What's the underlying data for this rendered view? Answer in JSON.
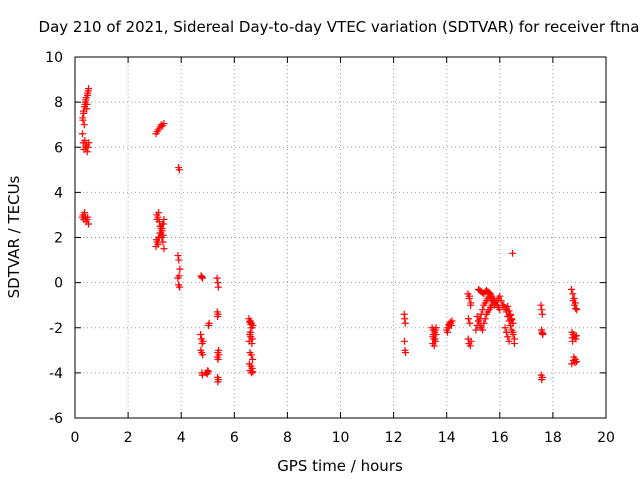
{
  "chart_data": {
    "type": "scatter",
    "title": "Day 210 of 2021, Sidereal Day-to-day VTEC variation (SDTVAR) for receiver ftna",
    "xlabel": "GPS time / hours",
    "ylabel": "SDTVAR / TECUs",
    "xlim": [
      0,
      20
    ],
    "ylim": [
      -6,
      10
    ],
    "x_ticks": [
      0,
      2,
      4,
      6,
      8,
      10,
      12,
      14,
      16,
      18,
      20
    ],
    "x_tick_labels": [
      "0",
      "2",
      "4",
      "6",
      "8",
      "10",
      "12",
      "14",
      "16",
      "18",
      "20"
    ],
    "y_ticks": [
      -6,
      -4,
      -2,
      0,
      2,
      4,
      6,
      8,
      10
    ],
    "y_tick_labels": [
      "-6",
      "-4",
      "-2",
      "0",
      "2",
      "4",
      "6",
      "8",
      "10"
    ],
    "grid": true,
    "marker": "+",
    "color": "#ff0000",
    "series": [
      {
        "name": "SDTVAR",
        "x": [
          0.28,
          0.31,
          0.34,
          0.37,
          0.4,
          0.43,
          0.46,
          0.49,
          0.52,
          0.3,
          0.33,
          0.36,
          0.39,
          0.42,
          0.45,
          0.48,
          0.51,
          0.29,
          0.32,
          0.35,
          0.38,
          0.41,
          0.44,
          0.47,
          0.5,
          0.27,
          0.3,
          0.33,
          0.36,
          0.39,
          0.42,
          0.45,
          0.48,
          0.51,
          3.05,
          3.1,
          3.15,
          3.2,
          3.25,
          3.3,
          3.35,
          3.05,
          3.1,
          3.15,
          3.2,
          3.25,
          3.3,
          3.35,
          3.08,
          3.12,
          3.18,
          3.22,
          3.28,
          3.32,
          3.07,
          3.13,
          3.17,
          3.23,
          3.27,
          3.33,
          3.09,
          3.15,
          3.21,
          3.27,
          3.31,
          3.35,
          3.9,
          3.93,
          3.88,
          3.91,
          3.95,
          3.87,
          3.92,
          3.9,
          3.94,
          4.75,
          4.78,
          4.8,
          4.73,
          4.76,
          4.79,
          4.82,
          4.74,
          4.77,
          4.81,
          4.78,
          4.8,
          4.95,
          5.0,
          5.05,
          5.03,
          4.98,
          5.02,
          5.35,
          5.38,
          5.4,
          5.36,
          5.39,
          5.37,
          5.41,
          5.38,
          5.42,
          5.36,
          5.39,
          5.37,
          5.4,
          5.38,
          6.55,
          6.6,
          6.65,
          6.7,
          6.58,
          6.62,
          6.68,
          6.56,
          6.61,
          6.66,
          6.59,
          6.64,
          6.69,
          6.57,
          6.63,
          6.67,
          6.6,
          6.65,
          6.7,
          6.58,
          6.62,
          6.66,
          12.4,
          12.42,
          12.44,
          12.41,
          12.43,
          12.45,
          13.45,
          13.5,
          13.55,
          13.6,
          13.48,
          13.52,
          13.58,
          13.47,
          13.53,
          13.57,
          13.49,
          13.55,
          13.6,
          14.0,
          14.05,
          14.1,
          14.15,
          14.2,
          14.03,
          14.08,
          14.13,
          14.18,
          14.8,
          14.85,
          14.9,
          14.82,
          14.87,
          14.92,
          14.84,
          14.89,
          14.81,
          14.86,
          14.91,
          15.1,
          15.15,
          15.2,
          15.25,
          15.3,
          15.35,
          15.4,
          15.45,
          15.5,
          15.55,
          15.6,
          15.65,
          15.7,
          15.75,
          15.8,
          15.85,
          15.9,
          15.95,
          16.0,
          16.05,
          16.1,
          15.2,
          15.25,
          15.3,
          15.35,
          15.4,
          15.45,
          15.5,
          15.55,
          15.6,
          15.65,
          15.7,
          15.75,
          15.8,
          15.85,
          15.9,
          15.95,
          16.0,
          15.15,
          15.2,
          15.25,
          15.3,
          15.35,
          15.4,
          15.45,
          15.5,
          15.55,
          15.6,
          15.65,
          15.7,
          16.15,
          16.2,
          16.25,
          16.3,
          16.35,
          16.4,
          16.45,
          16.5,
          16.55,
          16.2,
          16.25,
          16.3,
          16.35,
          16.4,
          16.45,
          16.5,
          16.25,
          16.3,
          16.35,
          16.4,
          16.45,
          16.5,
          16.55,
          16.48,
          17.55,
          17.58,
          17.6,
          17.57,
          17.59,
          17.62,
          17.56,
          17.6,
          17.58,
          17.61,
          18.7,
          18.75,
          18.8,
          18.85,
          18.9,
          18.72,
          18.77,
          18.82,
          18.87,
          18.74,
          18.79,
          18.84,
          18.89,
          18.71,
          18.76,
          18.81,
          18.86,
          18.73,
          18.78,
          18.83,
          18.88
        ],
        "y": [
          6.6,
          6.2,
          5.9,
          6.3,
          6.0,
          6.1,
          5.8,
          6.0,
          6.2,
          7.2,
          7.5,
          7.8,
          8.0,
          8.2,
          7.9,
          8.4,
          8.6,
          7.3,
          7.6,
          7.0,
          7.9,
          8.1,
          7.7,
          8.3,
          8.5,
          2.9,
          3.0,
          2.8,
          3.1,
          2.9,
          2.7,
          2.8,
          2.9,
          2.6,
          6.6,
          6.7,
          6.8,
          6.9,
          7.0,
          6.95,
          7.05,
          1.6,
          1.8,
          2.0,
          2.2,
          2.4,
          2.6,
          2.8,
          3.0,
          2.9,
          2.7,
          2.5,
          2.3,
          2.1,
          1.9,
          1.7,
          2.0,
          2.2,
          2.4,
          2.6,
          2.8,
          3.1,
          2.5,
          2.0,
          1.8,
          1.5,
          5.1,
          5.0,
          1.2,
          1.0,
          0.6,
          0.2,
          0.3,
          -0.1,
          -0.2,
          0.3,
          0.25,
          0.2,
          -2.3,
          -2.5,
          -2.7,
          -2.6,
          -3.0,
          -3.1,
          -3.2,
          -4.0,
          -4.1,
          -4.0,
          -3.9,
          -1.8,
          -1.9,
          -4.05,
          -3.95,
          0.2,
          0.0,
          -0.2,
          -1.3,
          -1.4,
          -1.5,
          -3.0,
          -3.1,
          -3.2,
          -3.3,
          -3.4,
          -4.2,
          -4.3,
          -4.4,
          -1.6,
          -1.7,
          -1.8,
          -1.9,
          -2.3,
          -2.4,
          -2.5,
          -2.6,
          -2.2,
          -2.7,
          -3.1,
          -3.2,
          -3.4,
          -3.6,
          -3.7,
          -3.8,
          -3.9,
          -4.0,
          -3.95,
          -1.75,
          -1.85,
          -2.0,
          -1.4,
          -1.6,
          -1.8,
          -2.6,
          -3.0,
          -3.1,
          -2.0,
          -2.1,
          -2.2,
          -2.3,
          -2.4,
          -2.5,
          -2.6,
          -2.7,
          -2.8,
          -2.1,
          -2.3,
          -2.5,
          -2.0,
          -2.1,
          -2.0,
          -1.9,
          -1.8,
          -1.7,
          -2.2,
          -1.85,
          -1.75,
          -1.9,
          -0.5,
          -0.7,
          -1.0,
          -1.6,
          -1.8,
          -2.6,
          -2.7,
          -2.8,
          -2.5,
          -0.6,
          -0.9,
          -2.1,
          -1.9,
          -1.7,
          -1.6,
          -1.4,
          -1.2,
          -1.0,
          -0.9,
          -0.8,
          -0.7,
          -0.6,
          -0.7,
          -0.8,
          -0.9,
          -1.0,
          -0.9,
          -0.8,
          -0.7,
          -0.6,
          -0.8,
          -1.0,
          -0.3,
          -0.35,
          -0.4,
          -0.45,
          -0.5,
          -0.4,
          -0.35,
          -0.4,
          -0.45,
          -0.5,
          -0.6,
          -0.7,
          -0.8,
          -0.9,
          -1.0,
          -1.1,
          -1.2,
          -1.5,
          -1.7,
          -1.9,
          -2.0,
          -2.1,
          -1.8,
          -1.6,
          -1.4,
          -1.3,
          -1.2,
          -1.1,
          -1.0,
          -1.0,
          -1.1,
          -1.3,
          -1.5,
          -1.7,
          -1.9,
          -2.1,
          -2.3,
          -2.5,
          -2.0,
          -2.2,
          -2.4,
          -2.6,
          -1.4,
          -1.6,
          -1.8,
          -1.2,
          -1.05,
          -1.25,
          -1.45,
          -1.65,
          -2.2,
          -2.7,
          1.3,
          -1.0,
          -1.2,
          -1.4,
          -2.1,
          -2.2,
          -2.3,
          -4.1,
          -4.2,
          -4.3,
          -2.25,
          -0.3,
          -0.5,
          -0.7,
          -0.9,
          -1.2,
          -2.2,
          -2.3,
          -2.4,
          -2.5,
          -2.6,
          -3.3,
          -3.4,
          -3.5,
          -3.6,
          -0.8,
          -1.0,
          -1.15,
          -2.45,
          -3.45,
          -3.55,
          -2.35
        ]
      }
    ]
  }
}
